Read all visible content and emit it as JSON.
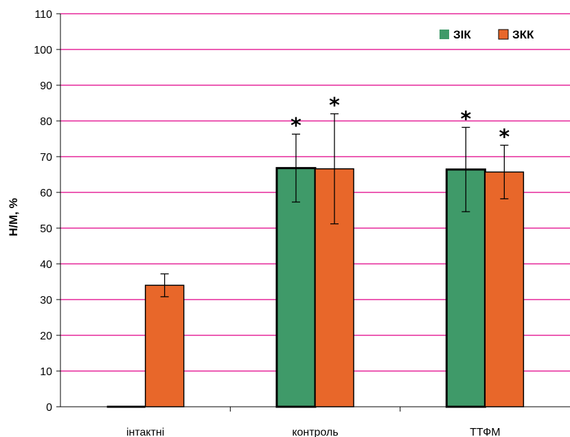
{
  "chart_data": {
    "type": "bar",
    "ylabel": "Н/М, %",
    "xlabel": "",
    "ylim": [
      0,
      110
    ],
    "yticks": [
      0,
      10,
      20,
      30,
      40,
      50,
      60,
      70,
      80,
      90,
      100,
      110
    ],
    "grid": true,
    "legend_position": "top-right",
    "categories": [
      "інтактні",
      "контроль",
      "ТТФМ"
    ],
    "series": [
      {
        "name": "ЗІК",
        "color": "#3f9a69",
        "values": [
          null,
          66.8,
          66.4
        ],
        "errors": [
          null,
          9.5,
          11.8
        ],
        "significance": [
          null,
          "*",
          "*"
        ]
      },
      {
        "name": "ЗКК",
        "color": "#e8672a",
        "values": [
          34.0,
          66.6,
          65.7
        ],
        "errors": [
          3.2,
          15.4,
          7.5
        ],
        "significance": [
          null,
          "*",
          "*"
        ]
      }
    ],
    "colors": {
      "grid": "#e6279a",
      "axis": "#000000"
    }
  }
}
